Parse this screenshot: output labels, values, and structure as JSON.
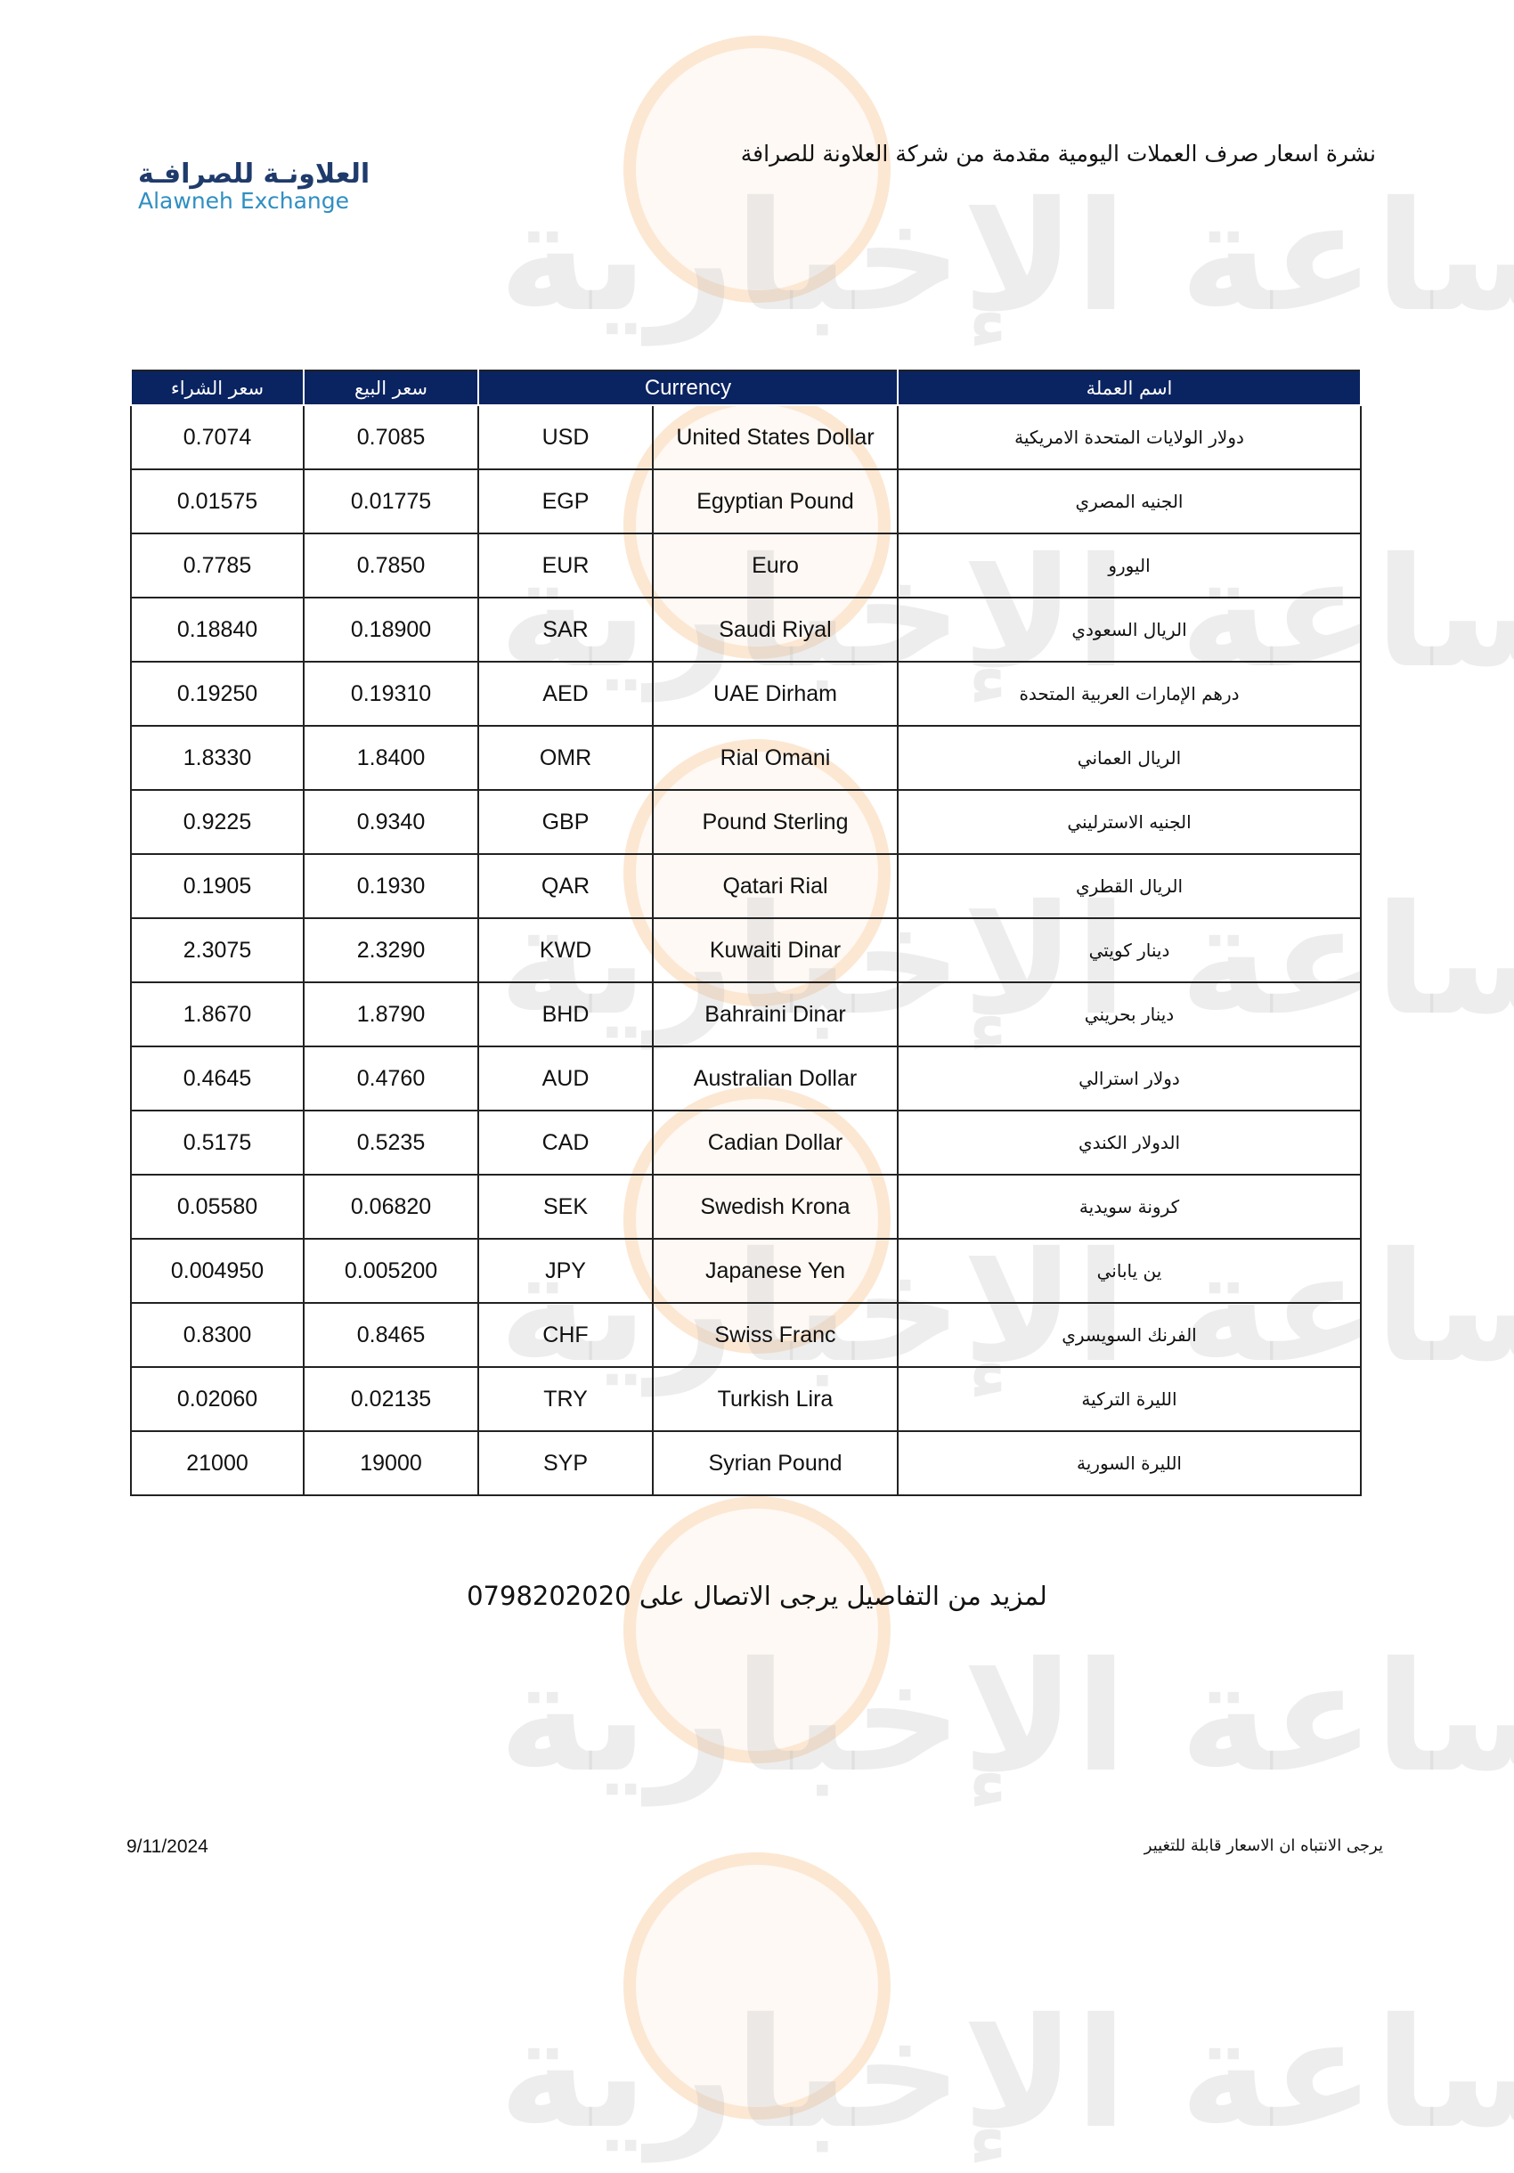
{
  "header": {
    "title": "نشرة اسعار صرف العملات اليومية مقدمة من شركة العلاونة للصرافة",
    "logo_arabic": "العلاونـة للصرافـة",
    "logo_english": "Alawneh Exchange"
  },
  "watermark": {
    "text": "مدار الساعة الإخبارية"
  },
  "table": {
    "headers": {
      "buy": "سعر الشراء",
      "sell": "سعر البيع",
      "currency": "Currency",
      "name_ar": "اسم العملة"
    },
    "rows": [
      {
        "buy": "0.7074",
        "sell": "0.7085",
        "code": "USD",
        "name_en": "United States Dollar",
        "name_ar": "دولار الولايات المتحدة الامريكية"
      },
      {
        "buy": "0.01575",
        "sell": "0.01775",
        "code": "EGP",
        "name_en": "Egyptian Pound",
        "name_ar": "الجنيه المصري"
      },
      {
        "buy": "0.7785",
        "sell": "0.7850",
        "code": "EUR",
        "name_en": "Euro",
        "name_ar": "اليورو"
      },
      {
        "buy": "0.18840",
        "sell": "0.18900",
        "code": "SAR",
        "name_en": "Saudi Riyal",
        "name_ar": "الريال السعودي"
      },
      {
        "buy": "0.19250",
        "sell": "0.19310",
        "code": "AED",
        "name_en": "UAE Dirham",
        "name_ar": "درهم الإمارات العربية المتحدة"
      },
      {
        "buy": "1.8330",
        "sell": "1.8400",
        "code": "OMR",
        "name_en": "Rial Omani",
        "name_ar": "الريال العماني"
      },
      {
        "buy": "0.9225",
        "sell": "0.9340",
        "code": "GBP",
        "name_en": "Pound Sterling",
        "name_ar": "الجنيه الاسترليني"
      },
      {
        "buy": "0.1905",
        "sell": "0.1930",
        "code": "QAR",
        "name_en": "Qatari Rial",
        "name_ar": "الريال القطري"
      },
      {
        "buy": "2.3075",
        "sell": "2.3290",
        "code": "KWD",
        "name_en": "Kuwaiti Dinar",
        "name_ar": "دينار كويتي"
      },
      {
        "buy": "1.8670",
        "sell": "1.8790",
        "code": "BHD",
        "name_en": "Bahraini Dinar",
        "name_ar": "دينار بحريني"
      },
      {
        "buy": "0.4645",
        "sell": "0.4760",
        "code": "AUD",
        "name_en": "Australian Dollar",
        "name_ar": "دولار استرالي"
      },
      {
        "buy": "0.5175",
        "sell": "0.5235",
        "code": "CAD",
        "name_en": "Cadian Dollar",
        "name_ar": "الدولار الكندي"
      },
      {
        "buy": "0.05580",
        "sell": "0.06820",
        "code": "SEK",
        "name_en": "Swedish Krona",
        "name_ar": "كرونة سويدية"
      },
      {
        "buy": "0.004950",
        "sell": "0.005200",
        "code": "JPY",
        "name_en": "Japanese Yen",
        "name_ar": "ين ياباني"
      },
      {
        "buy": "0.8300",
        "sell": "0.8465",
        "code": "CHF",
        "name_en": "Swiss Franc",
        "name_ar": "الفرنك السويسري"
      },
      {
        "buy": "0.02060",
        "sell": "0.02135",
        "code": "TRY",
        "name_en": "Turkish Lira",
        "name_ar": "الليرة التركية"
      },
      {
        "buy": "21000",
        "sell": "19000",
        "code": "SYP",
        "name_en": "Syrian Pound",
        "name_ar": "الليرة السورية"
      }
    ]
  },
  "footer": {
    "contact": "لمزيد من التفاصيل يرجى الاتصال على 0798202020",
    "date": "9/11/2024",
    "note": "يرجى الانتباه ان الاسعار قابلة للتغيير"
  }
}
